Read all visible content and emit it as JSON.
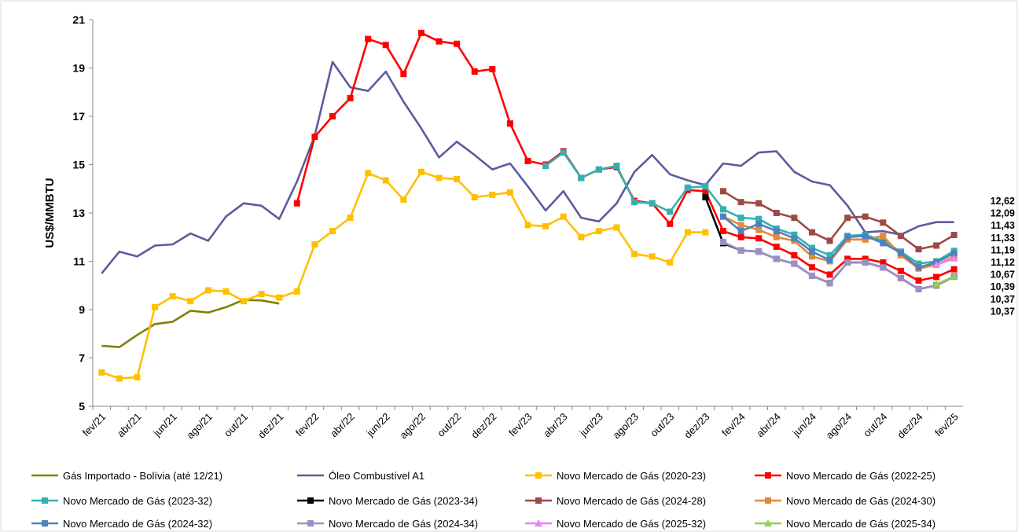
{
  "chart_data": {
    "type": "line",
    "y_label": "US$/MMBTU",
    "categories": [
      "fev/21",
      null,
      "abr/21",
      null,
      "jun/21",
      null,
      "ago/21",
      null,
      "out/21",
      null,
      "dez/21",
      null,
      "fev/22",
      null,
      "abr/22",
      null,
      "jun/22",
      null,
      "ago/22",
      null,
      "out/22",
      null,
      "dez/22",
      null,
      "fev/23",
      null,
      "abr/23",
      null,
      "jun/23",
      null,
      "ago/23",
      null,
      "out/23",
      null,
      "dez/23",
      null,
      "fev/24",
      null,
      "abr/24",
      null,
      "jun/24",
      null,
      "ago/24",
      null,
      "out/24",
      null,
      "dez/24",
      null,
      "fev/25"
    ],
    "ylim": [
      5,
      21
    ],
    "yticks": [
      5,
      7,
      9,
      11,
      13,
      15,
      17,
      19,
      21
    ],
    "grid": false,
    "series": [
      {
        "name": "Gás Importado - Bolívia (até 12/21)",
        "color": "#808000",
        "marker": "none",
        "values": [
          7.5,
          7.45,
          7.95,
          8.4,
          8.5,
          8.95,
          8.88,
          9.1,
          9.4,
          9.38,
          9.25,
          null,
          null,
          null,
          null,
          null,
          null,
          null,
          null,
          null,
          null,
          null,
          null,
          null,
          null,
          null,
          null,
          null,
          null,
          null,
          null,
          null,
          null,
          null,
          null,
          null,
          null,
          null,
          null,
          null,
          null,
          null,
          null,
          null,
          null,
          null,
          null,
          null,
          null
        ]
      },
      {
        "name": "Óleo Combustível A1",
        "color": "#5b5c9e",
        "marker": "none",
        "end_label": "12,62",
        "values": [
          10.5,
          11.4,
          11.2,
          11.65,
          11.7,
          12.15,
          11.85,
          12.85,
          13.4,
          13.3,
          12.75,
          14.3,
          16.2,
          19.25,
          18.2,
          18.05,
          18.85,
          17.6,
          16.5,
          15.3,
          15.95,
          15.4,
          14.8,
          15.05,
          14.1,
          13.1,
          13.9,
          12.8,
          12.65,
          13.4,
          14.7,
          15.4,
          14.6,
          14.35,
          14.15,
          15.05,
          14.95,
          15.5,
          15.55,
          14.7,
          14.3,
          14.15,
          13.3,
          12.2,
          12.25,
          12.1,
          12.45,
          12.62,
          12.62
        ]
      },
      {
        "name": "Novo Mercado de Gás (2020-23)",
        "color": "#ffc000",
        "marker": "square",
        "values": [
          6.4,
          6.15,
          6.2,
          9.1,
          9.55,
          9.35,
          9.8,
          9.75,
          9.35,
          9.65,
          9.5,
          9.75,
          11.7,
          12.25,
          12.8,
          14.65,
          14.35,
          13.55,
          14.7,
          14.45,
          14.4,
          13.65,
          13.75,
          13.85,
          12.5,
          12.45,
          12.85,
          12.0,
          12.25,
          12.4,
          11.3,
          11.2,
          10.95,
          12.2,
          12.2,
          null,
          null,
          null,
          null,
          null,
          null,
          null,
          null,
          null,
          null,
          null,
          null,
          null,
          null
        ]
      },
      {
        "name": "Novo Mercado de Gás (2022-25)",
        "color": "#ff0000",
        "marker": "square",
        "end_label": "10,67",
        "values": [
          null,
          null,
          null,
          null,
          null,
          null,
          null,
          null,
          null,
          null,
          null,
          13.4,
          16.15,
          17.0,
          17.75,
          20.2,
          19.95,
          18.75,
          20.45,
          20.1,
          20.0,
          18.85,
          18.95,
          16.7,
          15.15,
          15.0,
          15.55,
          14.45,
          14.8,
          14.9,
          13.5,
          13.4,
          12.55,
          13.95,
          13.9,
          12.25,
          12.0,
          11.95,
          11.6,
          11.25,
          10.75,
          10.45,
          11.1,
          11.1,
          10.95,
          10.6,
          10.2,
          10.35,
          10.67
        ]
      },
      {
        "name": "Novo Mercado de Gás (2023-32)",
        "color": "#35b0b0",
        "marker": "square",
        "end_label": "11,43",
        "values": [
          null,
          null,
          null,
          null,
          null,
          null,
          null,
          null,
          null,
          null,
          null,
          null,
          null,
          null,
          null,
          null,
          null,
          null,
          null,
          null,
          null,
          null,
          null,
          null,
          null,
          14.95,
          15.5,
          14.45,
          14.8,
          14.95,
          13.45,
          13.4,
          13.05,
          14.05,
          14.1,
          13.15,
          12.8,
          12.75,
          12.35,
          12.1,
          11.55,
          11.25,
          12.05,
          12.1,
          11.85,
          11.4,
          10.9,
          11.0,
          11.43
        ]
      },
      {
        "name": "Novo Mercado de Gás (2023-34)",
        "color": "#000000",
        "marker": "square",
        "end_label": "10,37",
        "values": [
          null,
          null,
          null,
          null,
          null,
          null,
          null,
          null,
          null,
          null,
          null,
          null,
          null,
          null,
          null,
          null,
          null,
          null,
          null,
          null,
          null,
          null,
          null,
          null,
          null,
          null,
          null,
          null,
          null,
          null,
          null,
          null,
          null,
          null,
          13.65,
          11.75,
          11.45,
          11.4,
          11.1,
          10.9,
          10.4,
          10.1,
          10.95,
          10.95,
          10.75,
          10.3,
          9.85,
          10.0,
          10.37
        ]
      },
      {
        "name": "Novo Mercado de Gás (2024-28)",
        "color": "#9c4a46",
        "marker": "square",
        "end_label": "12,09",
        "values": [
          null,
          null,
          null,
          null,
          null,
          null,
          null,
          null,
          null,
          null,
          null,
          null,
          null,
          null,
          null,
          null,
          null,
          null,
          null,
          null,
          null,
          null,
          null,
          null,
          null,
          null,
          null,
          null,
          null,
          null,
          null,
          null,
          null,
          null,
          null,
          13.9,
          13.45,
          13.4,
          13.0,
          12.8,
          12.2,
          11.85,
          12.8,
          12.85,
          12.6,
          12.05,
          11.5,
          11.65,
          12.09
        ]
      },
      {
        "name": "Novo Mercado de Gás (2024-30)",
        "color": "#e3893c",
        "marker": "square",
        "end_label": "11,19",
        "values": [
          null,
          null,
          null,
          null,
          null,
          null,
          null,
          null,
          null,
          null,
          null,
          null,
          null,
          null,
          null,
          null,
          null,
          null,
          null,
          null,
          null,
          null,
          null,
          null,
          null,
          null,
          null,
          null,
          null,
          null,
          null,
          null,
          null,
          null,
          null,
          12.85,
          12.5,
          12.3,
          12.0,
          11.85,
          11.2,
          11.0,
          11.9,
          11.9,
          12.05,
          11.25,
          10.7,
          10.85,
          11.19
        ]
      },
      {
        "name": "Novo Mercado de Gás (2024-32)",
        "color": "#4f81bd",
        "marker": "square",
        "end_label": "11,33",
        "values": [
          null,
          null,
          null,
          null,
          null,
          null,
          null,
          null,
          null,
          null,
          null,
          null,
          null,
          null,
          null,
          null,
          null,
          null,
          null,
          null,
          null,
          null,
          null,
          null,
          null,
          null,
          null,
          null,
          null,
          null,
          null,
          null,
          null,
          null,
          null,
          12.85,
          12.25,
          12.55,
          12.25,
          11.95,
          11.4,
          11.05,
          12.0,
          12.05,
          11.75,
          11.35,
          10.75,
          10.95,
          11.33
        ]
      },
      {
        "name": "Novo Mercado de Gás (2024-34)",
        "color": "#9d8fc4",
        "marker": "square",
        "end_label": "10,39",
        "values": [
          null,
          null,
          null,
          null,
          null,
          null,
          null,
          null,
          null,
          null,
          null,
          null,
          null,
          null,
          null,
          null,
          null,
          null,
          null,
          null,
          null,
          null,
          null,
          null,
          null,
          null,
          null,
          null,
          null,
          null,
          null,
          null,
          null,
          null,
          null,
          11.8,
          11.45,
          11.4,
          11.1,
          10.9,
          10.4,
          10.1,
          10.95,
          10.95,
          10.75,
          10.3,
          9.85,
          10.0,
          10.39
        ]
      },
      {
        "name": "Novo Mercado de Gás (2025-32)",
        "color": "#ee82ee",
        "marker": "triangle",
        "end_label": "11,12",
        "values": [
          null,
          null,
          null,
          null,
          null,
          null,
          null,
          null,
          null,
          null,
          null,
          null,
          null,
          null,
          null,
          null,
          null,
          null,
          null,
          null,
          null,
          null,
          null,
          null,
          null,
          null,
          null,
          null,
          null,
          null,
          null,
          null,
          null,
          null,
          null,
          null,
          null,
          null,
          null,
          null,
          null,
          null,
          null,
          null,
          null,
          null,
          null,
          10.85,
          11.12
        ]
      },
      {
        "name": "Novo Mercado de Gás (2025-34)",
        "color": "#92d050",
        "marker": "triangle",
        "end_label": "10,37",
        "values": [
          null,
          null,
          null,
          null,
          null,
          null,
          null,
          null,
          null,
          null,
          null,
          null,
          null,
          null,
          null,
          null,
          null,
          null,
          null,
          null,
          null,
          null,
          null,
          null,
          null,
          null,
          null,
          null,
          null,
          null,
          null,
          null,
          null,
          null,
          null,
          null,
          null,
          null,
          null,
          null,
          null,
          null,
          null,
          null,
          null,
          null,
          null,
          10.05,
          10.37
        ]
      }
    ]
  }
}
